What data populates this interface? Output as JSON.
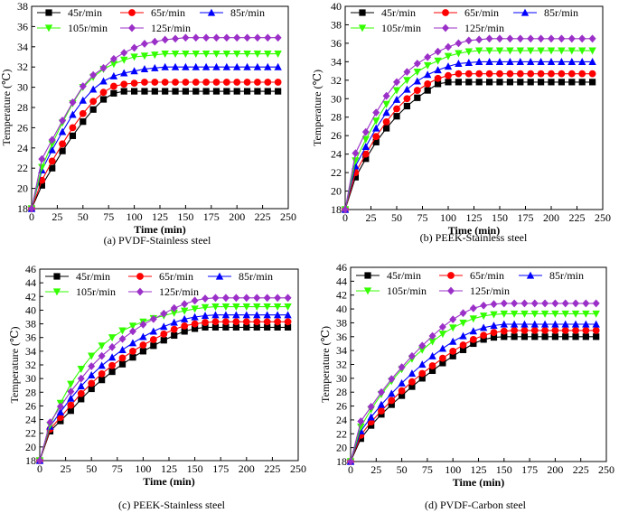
{
  "chart_data": [
    {
      "type": "line",
      "caption": "(a) PVDF-Stainless steel",
      "xlabel": "Time (min)",
      "ylabel": "Temperature (℃)",
      "xlim": [
        0,
        250
      ],
      "ylim": [
        18,
        38
      ],
      "xticks": [
        0,
        25,
        50,
        75,
        100,
        125,
        150,
        175,
        200,
        225,
        250
      ],
      "yticks": [
        18,
        20,
        22,
        24,
        26,
        28,
        30,
        32,
        34,
        36,
        38
      ],
      "x": [
        0,
        10,
        20,
        30,
        40,
        50,
        60,
        70,
        80,
        90,
        100,
        110,
        120,
        130,
        140,
        150,
        160,
        170,
        180,
        190,
        200,
        210,
        220,
        230,
        240
      ],
      "series": [
        {
          "name": "45r/min",
          "color": "#000000",
          "marker": "square",
          "values": [
            18,
            20.3,
            22.0,
            23.7,
            25.2,
            26.6,
            27.8,
            28.8,
            29.4,
            29.6,
            29.6,
            29.6,
            29.6,
            29.6,
            29.6,
            29.6,
            29.6,
            29.6,
            29.6,
            29.6,
            29.6,
            29.6,
            29.6,
            29.6,
            29.6
          ]
        },
        {
          "name": "65r/min",
          "color": "#ff0000",
          "marker": "circle",
          "values": [
            18,
            20.8,
            22.7,
            24.4,
            26.0,
            27.4,
            28.6,
            29.5,
            30.1,
            30.3,
            30.4,
            30.5,
            30.5,
            30.5,
            30.5,
            30.5,
            30.5,
            30.5,
            30.5,
            30.5,
            30.5,
            30.5,
            30.5,
            30.5,
            30.5
          ]
        },
        {
          "name": "85r/min",
          "color": "#0000ff",
          "marker": "triangle-up",
          "values": [
            18,
            21.8,
            23.8,
            25.6,
            27.3,
            28.7,
            29.8,
            30.6,
            31.1,
            31.4,
            31.6,
            31.8,
            31.9,
            32.0,
            32.0,
            32.0,
            32.0,
            32.0,
            32.0,
            32.0,
            32.0,
            32.0,
            32.0,
            32.0,
            32.0
          ]
        },
        {
          "name": "105r/min",
          "color": "#33ff00",
          "marker": "triangle-down",
          "values": [
            18,
            22.1,
            24.4,
            26.5,
            28.4,
            30.0,
            31.0,
            31.8,
            32.3,
            32.7,
            33.0,
            33.1,
            33.2,
            33.3,
            33.3,
            33.3,
            33.3,
            33.3,
            33.3,
            33.3,
            33.3,
            33.3,
            33.3,
            33.3,
            33.3
          ]
        },
        {
          "name": "125r/min",
          "color": "#9b30c8",
          "marker": "diamond",
          "values": [
            18,
            22.9,
            24.8,
            26.7,
            28.5,
            30.1,
            31.2,
            31.9,
            32.8,
            33.4,
            33.9,
            34.3,
            34.5,
            34.7,
            34.8,
            34.9,
            34.9,
            34.9,
            34.9,
            34.9,
            34.9,
            34.9,
            34.9,
            34.9,
            34.9
          ]
        }
      ]
    },
    {
      "type": "line",
      "caption": "(b) PEEK-Stainless steel",
      "xlabel": "Time (min)",
      "ylabel": "Temperature (℃)",
      "xlim": [
        0,
        250
      ],
      "ylim": [
        18,
        40
      ],
      "xticks": [
        0,
        25,
        50,
        75,
        100,
        125,
        150,
        175,
        200,
        225,
        250
      ],
      "yticks": [
        18,
        20,
        22,
        24,
        26,
        28,
        30,
        32,
        34,
        36,
        38,
        40
      ],
      "x": [
        0,
        10,
        20,
        30,
        40,
        50,
        60,
        70,
        80,
        90,
        100,
        110,
        120,
        130,
        140,
        150,
        160,
        170,
        180,
        190,
        200,
        210,
        220,
        230,
        240
      ],
      "series": [
        {
          "name": "45r/min",
          "color": "#000000",
          "marker": "square",
          "values": [
            18,
            21.5,
            23.5,
            25.3,
            26.8,
            28.1,
            29.2,
            30.1,
            30.9,
            31.6,
            31.8,
            31.8,
            31.8,
            31.8,
            31.8,
            31.8,
            31.8,
            31.8,
            31.8,
            31.8,
            31.8,
            31.8,
            31.8,
            31.8,
            31.8
          ]
        },
        {
          "name": "65r/min",
          "color": "#ff0000",
          "marker": "circle",
          "values": [
            18,
            22.0,
            24.0,
            25.9,
            27.5,
            28.9,
            30.0,
            30.9,
            31.6,
            32.2,
            32.5,
            32.7,
            32.7,
            32.7,
            32.7,
            32.7,
            32.7,
            32.7,
            32.7,
            32.7,
            32.7,
            32.7,
            32.7,
            32.7,
            32.7
          ]
        },
        {
          "name": "85r/min",
          "color": "#0000ff",
          "marker": "triangle-up",
          "values": [
            18,
            22.7,
            24.8,
            26.8,
            28.5,
            29.9,
            31.0,
            31.9,
            32.6,
            33.1,
            33.5,
            33.8,
            33.9,
            34.0,
            34.0,
            34.0,
            34.0,
            34.0,
            34.0,
            34.0,
            34.0,
            34.0,
            34.0,
            34.0,
            34.0
          ]
        },
        {
          "name": "105r/min",
          "color": "#33ff00",
          "marker": "triangle-down",
          "values": [
            18,
            23.3,
            25.6,
            27.6,
            29.4,
            30.9,
            32.0,
            32.9,
            33.6,
            34.1,
            34.6,
            34.9,
            35.1,
            35.2,
            35.2,
            35.2,
            35.2,
            35.2,
            35.2,
            35.2,
            35.2,
            35.2,
            35.2,
            35.2,
            35.2
          ]
        },
        {
          "name": "125r/min",
          "color": "#9b30c8",
          "marker": "diamond",
          "values": [
            18,
            24.1,
            26.4,
            28.5,
            30.3,
            31.8,
            32.9,
            33.8,
            34.5,
            35.1,
            35.6,
            36.0,
            36.3,
            36.4,
            36.5,
            36.5,
            36.5,
            36.5,
            36.5,
            36.5,
            36.5,
            36.5,
            36.5,
            36.5,
            36.5
          ]
        }
      ]
    },
    {
      "type": "line",
      "caption": "(c) PEEK-Stainless steel",
      "xlabel": "Time (min)",
      "ylabel": "Temperature (℃)",
      "xlim": [
        0,
        250
      ],
      "ylim": [
        18,
        46
      ],
      "xticks": [
        0,
        25,
        50,
        75,
        100,
        125,
        150,
        175,
        200,
        225,
        250
      ],
      "yticks": [
        18,
        20,
        22,
        24,
        26,
        28,
        30,
        32,
        34,
        36,
        38,
        40,
        42,
        44,
        46
      ],
      "x": [
        0,
        10,
        20,
        30,
        40,
        50,
        60,
        70,
        80,
        90,
        100,
        110,
        120,
        130,
        140,
        150,
        160,
        170,
        180,
        190,
        200,
        210,
        220,
        230,
        240
      ],
      "series": [
        {
          "name": "45r/min",
          "color": "#000000",
          "marker": "square",
          "values": [
            18,
            22.3,
            23.8,
            25.3,
            27.0,
            28.5,
            29.8,
            31.0,
            32.1,
            33.1,
            34.0,
            34.8,
            35.6,
            36.3,
            36.9,
            37.3,
            37.5,
            37.5,
            37.5,
            37.5,
            37.5,
            37.5,
            37.5,
            37.5,
            37.5
          ]
        },
        {
          "name": "65r/min",
          "color": "#ff0000",
          "marker": "circle",
          "values": [
            18,
            22.6,
            24.3,
            26.1,
            27.8,
            29.3,
            30.7,
            31.9,
            33.0,
            34.0,
            34.9,
            35.7,
            36.5,
            37.2,
            37.7,
            38.0,
            38.2,
            38.3,
            38.3,
            38.3,
            38.3,
            38.3,
            38.3,
            38.3,
            38.3
          ]
        },
        {
          "name": "85r/min",
          "color": "#0000ff",
          "marker": "triangle-up",
          "values": [
            18,
            23.0,
            25.1,
            27.1,
            28.9,
            30.5,
            31.9,
            33.1,
            34.2,
            35.2,
            36.1,
            36.9,
            37.6,
            38.2,
            38.7,
            39.0,
            39.2,
            39.3,
            39.3,
            39.3,
            39.3,
            39.3,
            39.3,
            39.3,
            39.3
          ]
        },
        {
          "name": "105r/min",
          "color": "#33ff00",
          "marker": "triangle-down",
          "values": [
            18,
            23.2,
            26.4,
            29.2,
            31.4,
            33.3,
            34.8,
            36.0,
            37.0,
            37.7,
            38.3,
            38.8,
            39.2,
            39.6,
            39.9,
            40.2,
            40.4,
            40.5,
            40.5,
            40.5,
            40.5,
            40.5,
            40.5,
            40.5,
            40.5
          ]
        },
        {
          "name": "125r/min",
          "color": "#9b30c8",
          "marker": "diamond",
          "values": [
            18,
            23.6,
            25.9,
            28.1,
            30.0,
            31.8,
            33.3,
            34.6,
            35.8,
            36.9,
            37.9,
            38.7,
            39.5,
            40.3,
            40.9,
            41.4,
            41.7,
            41.8,
            41.8,
            41.8,
            41.8,
            41.8,
            41.8,
            41.8,
            41.8
          ]
        }
      ]
    },
    {
      "type": "line",
      "caption": "(d) PVDF-Carbon steel",
      "xlabel": "Time (min)",
      "ylabel": "Temperature (℃)",
      "xlim": [
        0,
        250
      ],
      "ylim": [
        18,
        46
      ],
      "xticks": [
        0,
        25,
        50,
        75,
        100,
        125,
        150,
        175,
        200,
        225,
        250
      ],
      "yticks": [
        18,
        20,
        22,
        24,
        26,
        28,
        30,
        32,
        34,
        36,
        38,
        40,
        42,
        44,
        46
      ],
      "x": [
        0,
        10,
        20,
        30,
        40,
        50,
        60,
        70,
        80,
        90,
        100,
        110,
        120,
        130,
        140,
        150,
        160,
        170,
        180,
        190,
        200,
        210,
        220,
        230,
        240
      ],
      "series": [
        {
          "name": "45r/min",
          "color": "#000000",
          "marker": "square",
          "values": [
            18,
            21.3,
            23.2,
            24.8,
            26.2,
            27.5,
            28.8,
            30.0,
            31.1,
            32.2,
            33.2,
            34.1,
            35.0,
            35.6,
            35.9,
            36.0,
            36.0,
            36.0,
            36.0,
            36.0,
            36.0,
            36.0,
            36.0,
            36.0,
            36.0
          ]
        },
        {
          "name": "65r/min",
          "color": "#ff0000",
          "marker": "circle",
          "values": [
            18,
            21.8,
            23.7,
            25.3,
            26.8,
            28.2,
            29.5,
            30.7,
            31.8,
            32.9,
            33.9,
            34.8,
            35.6,
            36.2,
            36.6,
            36.8,
            36.9,
            36.9,
            36.9,
            36.9,
            36.9,
            36.9,
            36.9,
            36.9,
            36.9
          ]
        },
        {
          "name": "85r/min",
          "color": "#0000ff",
          "marker": "triangle-up",
          "values": [
            18,
            22.4,
            24.4,
            26.2,
            27.8,
            29.3,
            30.7,
            32.0,
            33.2,
            34.3,
            35.3,
            36.1,
            36.8,
            37.3,
            37.6,
            37.8,
            37.8,
            37.8,
            37.8,
            37.8,
            37.8,
            37.8,
            37.8,
            37.8,
            37.8
          ]
        },
        {
          "name": "105r/min",
          "color": "#33ff00",
          "marker": "triangle-down",
          "values": [
            18,
            23.0,
            25.5,
            27.7,
            29.6,
            31.3,
            32.8,
            34.1,
            35.3,
            36.4,
            37.3,
            38.0,
            38.6,
            39.0,
            39.2,
            39.3,
            39.3,
            39.3,
            39.3,
            39.3,
            39.3,
            39.3,
            39.3,
            39.3,
            39.3
          ]
        },
        {
          "name": "125r/min",
          "color": "#9b30c8",
          "marker": "diamond",
          "values": [
            18,
            23.8,
            25.9,
            28.0,
            29.9,
            31.6,
            33.2,
            34.7,
            36.1,
            37.4,
            38.5,
            39.4,
            40.1,
            40.5,
            40.7,
            40.8,
            40.8,
            40.8,
            40.8,
            40.8,
            40.8,
            40.8,
            40.8,
            40.8,
            40.8
          ]
        }
      ]
    }
  ]
}
